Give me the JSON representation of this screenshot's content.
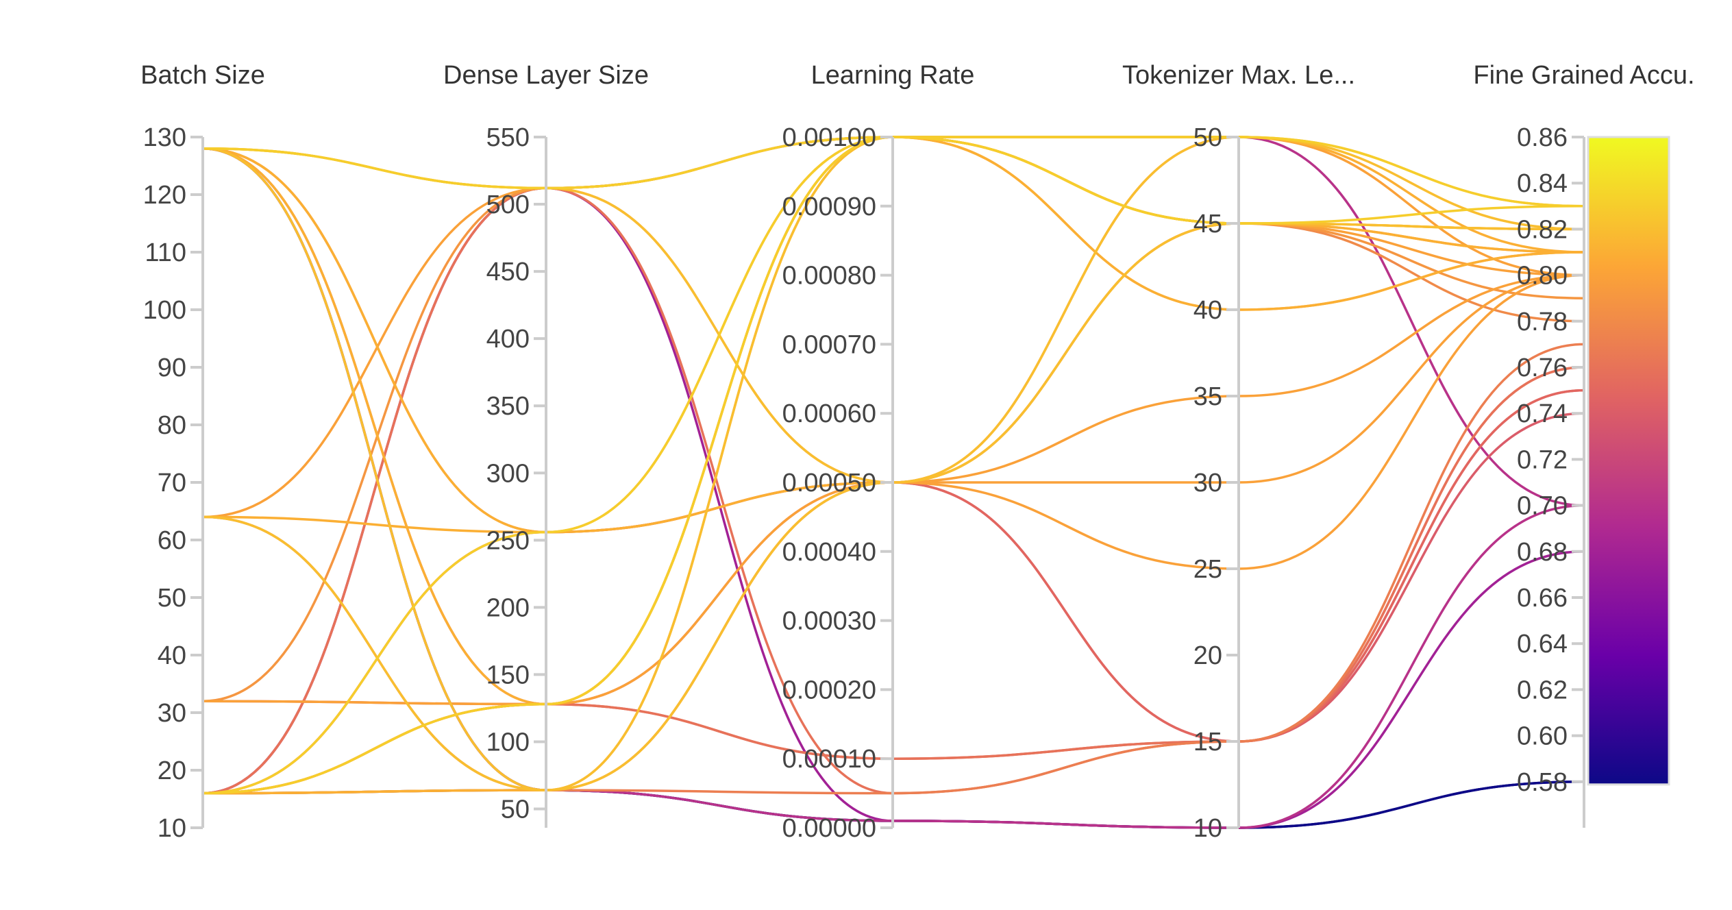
{
  "chart_data": {
    "type": "parallel_coordinates",
    "axes": [
      {
        "label": "Batch Size",
        "range": [
          10,
          130
        ],
        "ticks": [
          "130",
          "120",
          "110",
          "100",
          "90",
          "80",
          "70",
          "60",
          "50",
          "40",
          "30",
          "20",
          "10"
        ]
      },
      {
        "label": "Dense Layer Size",
        "range": [
          36,
          550
        ],
        "ticks": [
          "550",
          "500",
          "450",
          "400",
          "350",
          "300",
          "250",
          "200",
          "150",
          "100",
          "50"
        ]
      },
      {
        "label": "Learning Rate",
        "range": [
          0,
          0.001
        ],
        "ticks": [
          "0.00100",
          "0.00090",
          "0.00080",
          "0.00070",
          "0.00060",
          "0.00050",
          "0.00040",
          "0.00030",
          "0.00020",
          "0.00010",
          "0.00000"
        ]
      },
      {
        "label": "Tokenizer Max. Le...",
        "range": [
          10,
          50
        ],
        "ticks": [
          "50",
          "45",
          "40",
          "35",
          "30",
          "25",
          "20",
          "15",
          "10"
        ]
      },
      {
        "label": "Fine Grained Accu.",
        "range": [
          0.56,
          0.86
        ],
        "ticks": [
          "0.86",
          "0.84",
          "0.82",
          "0.80",
          "0.78",
          "0.76",
          "0.74",
          "0.72",
          "0.70",
          "0.68",
          "0.66",
          "0.64",
          "0.62",
          "0.60",
          "0.58"
        ]
      }
    ],
    "colorscale": {
      "name": "plasma",
      "range": [
        0.58,
        0.86
      ],
      "stops": [
        "#0d0887",
        "#6a00a8",
        "#b12a90",
        "#e16462",
        "#fca636",
        "#f0f921"
      ]
    },
    "records": [
      [
        128,
        512,
        0.001,
        50,
        0.83
      ],
      [
        128,
        512,
        0.001,
        45,
        0.82
      ],
      [
        128,
        256,
        0.0005,
        45,
        0.81
      ],
      [
        128,
        128,
        0.0001,
        15,
        0.75
      ],
      [
        128,
        64,
        1e-05,
        10,
        0.7
      ],
      [
        128,
        64,
        1e-05,
        10,
        0.58
      ],
      [
        128,
        256,
        0.0005,
        45,
        0.78
      ],
      [
        64,
        512,
        0.0005,
        30,
        0.8
      ],
      [
        64,
        256,
        0.001,
        45,
        0.81
      ],
      [
        64,
        64,
        5e-05,
        15,
        0.77
      ],
      [
        32,
        128,
        0.0005,
        15,
        0.74
      ],
      [
        32,
        512,
        0.001,
        45,
        0.79
      ],
      [
        16,
        512,
        1e-05,
        10,
        0.68
      ],
      [
        16,
        512,
        5e-05,
        15,
        0.76
      ],
      [
        16,
        256,
        0.001,
        50,
        0.83
      ],
      [
        16,
        128,
        0.001,
        40,
        0.81
      ],
      [
        16,
        128,
        0.0005,
        50,
        0.8
      ],
      [
        16,
        128,
        0.0001,
        15,
        0.76
      ],
      [
        16,
        64,
        0.0005,
        35,
        0.8
      ],
      [
        16,
        64,
        0.0005,
        25,
        0.8
      ],
      [
        16,
        64,
        1e-05,
        10,
        0.58
      ],
      [
        64,
        64,
        0.001,
        45,
        0.82
      ],
      [
        128,
        512,
        0.0005,
        50,
        0.82
      ],
      [
        16,
        256,
        0.0005,
        15,
        0.75
      ],
      [
        128,
        128,
        0.001,
        50,
        0.81
      ],
      [
        32,
        128,
        0.001,
        45,
        0.8
      ],
      [
        16,
        64,
        0.001,
        40,
        0.81
      ],
      [
        128,
        64,
        0.0005,
        45,
        0.82
      ],
      [
        16,
        512,
        0.001,
        50,
        0.7
      ],
      [
        16,
        128,
        0.001,
        45,
        0.83
      ]
    ]
  }
}
